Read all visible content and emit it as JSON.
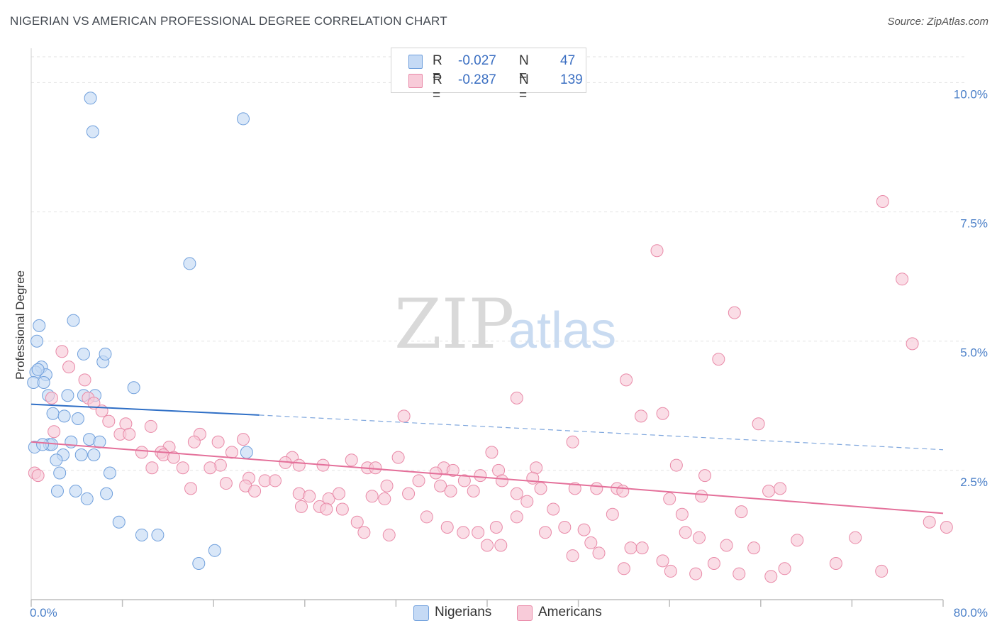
{
  "header": {
    "title": "NIGERIAN VS AMERICAN PROFESSIONAL DEGREE CORRELATION CHART",
    "source": "Source: ZipAtlas.com"
  },
  "watermark": {
    "zip": "ZIP",
    "atlas": "atlas"
  },
  "legend": {
    "r_label": "R =",
    "n_label": "N =",
    "rows": [
      {
        "r": "-0.027",
        "n": "47",
        "color": "#6f9fdc",
        "fill": "#c5daf5"
      },
      {
        "r": "-0.287",
        "n": "139",
        "color": "#e98aa8",
        "fill": "#f8cbd9"
      }
    ]
  },
  "bottom_legend": [
    "Nigerians",
    "Americans"
  ],
  "chart_data": {
    "type": "scatter",
    "title": "NIGERIAN VS AMERICAN PROFESSIONAL DEGREE CORRELATION CHART",
    "xlabel": "",
    "ylabel": "Professional Degree",
    "xlim": [
      0,
      80
    ],
    "ylim": [
      0,
      10.5
    ],
    "x_tick_labels": [
      "0.0%",
      "80.0%"
    ],
    "y_ticks": [
      2.5,
      5.0,
      7.5,
      10.0
    ],
    "y_tick_labels": [
      "2.5%",
      "5.0%",
      "7.5%",
      "10.0%"
    ],
    "grid": true,
    "legend_position": "top-center",
    "series": [
      {
        "name": "Nigerians",
        "color": "#6f9fdc",
        "fill": "#c5daf5",
        "trend": {
          "x0": 0,
          "y0": 3.78,
          "x1": 20,
          "y1": 3.57,
          "dash_to_x": 80,
          "dash_to_y": 2.9
        },
        "points": [
          [
            5.2,
            9.7
          ],
          [
            5.4,
            9.05
          ],
          [
            18.6,
            9.3
          ],
          [
            13.9,
            6.5
          ],
          [
            0.7,
            5.3
          ],
          [
            0.5,
            5.0
          ],
          [
            3.7,
            5.4
          ],
          [
            4.6,
            4.75
          ],
          [
            6.3,
            4.6
          ],
          [
            6.5,
            4.75
          ],
          [
            0.9,
            4.5
          ],
          [
            1.3,
            4.35
          ],
          [
            0.4,
            4.4
          ],
          [
            0.2,
            4.2
          ],
          [
            1.1,
            4.2
          ],
          [
            9.0,
            4.1
          ],
          [
            1.5,
            3.95
          ],
          [
            3.2,
            3.95
          ],
          [
            4.6,
            3.95
          ],
          [
            5.6,
            3.95
          ],
          [
            1.9,
            3.6
          ],
          [
            2.9,
            3.55
          ],
          [
            4.1,
            3.5
          ],
          [
            1.6,
            3.0
          ],
          [
            1.8,
            3.0
          ],
          [
            3.5,
            3.05
          ],
          [
            5.1,
            3.1
          ],
          [
            6.0,
            3.05
          ],
          [
            2.8,
            2.8
          ],
          [
            4.4,
            2.8
          ],
          [
            5.5,
            2.8
          ],
          [
            18.9,
            2.85
          ],
          [
            2.2,
            2.7
          ],
          [
            2.5,
            2.45
          ],
          [
            6.9,
            2.45
          ],
          [
            2.3,
            2.1
          ],
          [
            3.9,
            2.1
          ],
          [
            6.6,
            2.05
          ],
          [
            4.9,
            1.95
          ],
          [
            7.7,
            1.5
          ],
          [
            9.7,
            1.25
          ],
          [
            11.1,
            1.25
          ],
          [
            14.7,
            0.7
          ],
          [
            16.1,
            0.95
          ],
          [
            0.3,
            2.95
          ],
          [
            1.0,
            3.0
          ],
          [
            0.6,
            4.45
          ]
        ]
      },
      {
        "name": "Americans",
        "color": "#e98aa8",
        "fill": "#f8cbd9",
        "trend": {
          "x0": 0,
          "y0": 3.05,
          "x1": 80,
          "y1": 1.67
        },
        "points": [
          [
            74.7,
            7.7
          ],
          [
            54.9,
            6.75
          ],
          [
            76.4,
            6.2
          ],
          [
            61.7,
            5.55
          ],
          [
            77.3,
            4.95
          ],
          [
            60.3,
            4.65
          ],
          [
            2.7,
            4.8
          ],
          [
            3.3,
            4.5
          ],
          [
            4.7,
            4.25
          ],
          [
            5.0,
            3.9
          ],
          [
            1.8,
            3.9
          ],
          [
            5.5,
            3.8
          ],
          [
            6.2,
            3.65
          ],
          [
            42.6,
            3.9
          ],
          [
            52.2,
            4.25
          ],
          [
            55.4,
            3.6
          ],
          [
            53.5,
            3.55
          ],
          [
            32.7,
            3.55
          ],
          [
            63.8,
            3.4
          ],
          [
            6.8,
            3.45
          ],
          [
            8.3,
            3.4
          ],
          [
            10.5,
            3.35
          ],
          [
            7.8,
            3.2
          ],
          [
            8.6,
            3.2
          ],
          [
            2.0,
            3.25
          ],
          [
            14.8,
            3.2
          ],
          [
            16.4,
            3.05
          ],
          [
            18.6,
            3.1
          ],
          [
            12.1,
            2.95
          ],
          [
            14.3,
            3.05
          ],
          [
            11.4,
            2.85
          ],
          [
            9.7,
            2.85
          ],
          [
            11.6,
            2.8
          ],
          [
            17.6,
            2.85
          ],
          [
            16.6,
            2.6
          ],
          [
            22.9,
            2.75
          ],
          [
            28.1,
            2.7
          ],
          [
            22.3,
            2.65
          ],
          [
            23.5,
            2.6
          ],
          [
            25.6,
            2.6
          ],
          [
            29.5,
            2.55
          ],
          [
            30.2,
            2.55
          ],
          [
            32.2,
            2.75
          ],
          [
            36.2,
            2.55
          ],
          [
            37.0,
            2.5
          ],
          [
            40.4,
            2.85
          ],
          [
            41.0,
            2.5
          ],
          [
            44.3,
            2.55
          ],
          [
            47.5,
            3.05
          ],
          [
            56.6,
            2.6
          ],
          [
            64.7,
            2.1
          ],
          [
            56.0,
            1.95
          ],
          [
            0.3,
            2.45
          ],
          [
            0.6,
            2.4
          ],
          [
            12.5,
            2.75
          ],
          [
            13.3,
            2.55
          ],
          [
            10.6,
            2.55
          ],
          [
            15.7,
            2.55
          ],
          [
            19.1,
            2.35
          ],
          [
            20.5,
            2.3
          ],
          [
            21.4,
            2.3
          ],
          [
            17.1,
            2.25
          ],
          [
            14.0,
            2.15
          ],
          [
            18.8,
            2.2
          ],
          [
            19.6,
            2.1
          ],
          [
            23.5,
            2.05
          ],
          [
            24.4,
            2.0
          ],
          [
            26.1,
            1.95
          ],
          [
            27.0,
            2.05
          ],
          [
            29.9,
            2.0
          ],
          [
            31.0,
            1.95
          ],
          [
            31.2,
            2.2
          ],
          [
            33.1,
            2.05
          ],
          [
            34.0,
            2.3
          ],
          [
            35.5,
            2.45
          ],
          [
            35.9,
            2.2
          ],
          [
            36.8,
            2.1
          ],
          [
            38.0,
            2.3
          ],
          [
            38.8,
            2.1
          ],
          [
            39.4,
            2.4
          ],
          [
            41.3,
            2.3
          ],
          [
            42.6,
            2.05
          ],
          [
            44.0,
            2.35
          ],
          [
            44.7,
            2.15
          ],
          [
            47.7,
            2.15
          ],
          [
            49.6,
            2.15
          ],
          [
            51.4,
            2.15
          ],
          [
            51.9,
            2.1
          ],
          [
            58.8,
            2.0
          ],
          [
            59.1,
            2.4
          ],
          [
            62.3,
            1.7
          ],
          [
            65.7,
            2.15
          ],
          [
            23.7,
            1.8
          ],
          [
            25.3,
            1.8
          ],
          [
            25.9,
            1.75
          ],
          [
            27.3,
            1.75
          ],
          [
            28.6,
            1.5
          ],
          [
            29.2,
            1.3
          ],
          [
            31.4,
            1.25
          ],
          [
            34.7,
            1.6
          ],
          [
            36.5,
            1.4
          ],
          [
            37.9,
            1.3
          ],
          [
            39.2,
            1.3
          ],
          [
            40.0,
            1.05
          ],
          [
            40.8,
            1.4
          ],
          [
            41.2,
            1.05
          ],
          [
            42.6,
            1.6
          ],
          [
            43.5,
            1.9
          ],
          [
            45.1,
            1.3
          ],
          [
            45.8,
            1.75
          ],
          [
            46.8,
            1.4
          ],
          [
            47.5,
            0.85
          ],
          [
            48.5,
            1.35
          ],
          [
            49.1,
            1.1
          ],
          [
            49.8,
            0.9
          ],
          [
            51.0,
            1.65
          ],
          [
            52.6,
            1.0
          ],
          [
            53.6,
            1.0
          ],
          [
            55.4,
            0.75
          ],
          [
            57.1,
            1.65
          ],
          [
            56.1,
            0.55
          ],
          [
            58.3,
            0.5
          ],
          [
            58.6,
            1.2
          ],
          [
            59.9,
            0.7
          ],
          [
            61.0,
            1.05
          ],
          [
            62.1,
            0.5
          ],
          [
            63.4,
            1.0
          ],
          [
            64.9,
            0.45
          ],
          [
            67.2,
            1.15
          ],
          [
            66.1,
            0.6
          ],
          [
            70.6,
            0.7
          ],
          [
            72.3,
            1.2
          ],
          [
            74.6,
            0.55
          ],
          [
            78.8,
            1.5
          ],
          [
            80.3,
            1.4
          ],
          [
            52.0,
            0.6
          ],
          [
            57.4,
            1.3
          ]
        ]
      }
    ]
  }
}
